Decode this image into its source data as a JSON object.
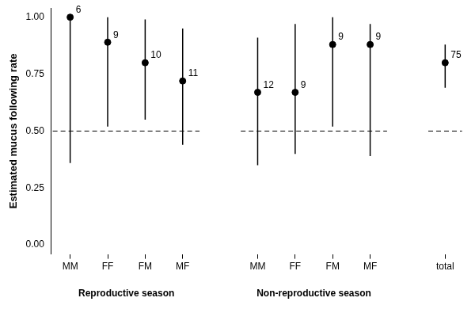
{
  "chart_data": {
    "type": "scatter",
    "y_label": "Estimated mucus following rate",
    "categories": [
      "MM",
      "FF",
      "FM",
      "MF",
      null,
      "MM",
      "FF",
      "FM",
      "MF",
      null,
      "total"
    ],
    "values": [
      1.0,
      0.89,
      0.8,
      0.72,
      null,
      0.67,
      0.67,
      0.88,
      0.88,
      null,
      0.8
    ],
    "lower": [
      0.36,
      0.52,
      0.55,
      0.44,
      null,
      0.35,
      0.4,
      0.52,
      0.39,
      null,
      0.69
    ],
    "upper": [
      1.0,
      1.0,
      0.99,
      0.95,
      null,
      0.91,
      0.97,
      1.0,
      0.97,
      null,
      0.88
    ],
    "sample_sizes": [
      6,
      9,
      10,
      11,
      null,
      12,
      9,
      9,
      9,
      null,
      75
    ],
    "groups": [
      {
        "name": "Reproductive season",
        "index_range": [
          0,
          3
        ]
      },
      {
        "name": "Non-reproductive season",
        "index_range": [
          5,
          8
        ]
      }
    ],
    "reference_line": {
      "value": 0.5,
      "line_style": "dashed"
    },
    "color": "#000000",
    "marker": "circle",
    "grid": false,
    "ylim": [
      -0.04,
      1.04
    ],
    "yticks": [
      {
        "value": 0,
        "label": "0.00"
      },
      {
        "value": 0.25,
        "label": "0.25"
      },
      {
        "value": 0.5,
        "label": "0.50"
      },
      {
        "value": 0.75,
        "label": "0.75"
      },
      {
        "value": 1,
        "label": "1.00"
      }
    ]
  }
}
